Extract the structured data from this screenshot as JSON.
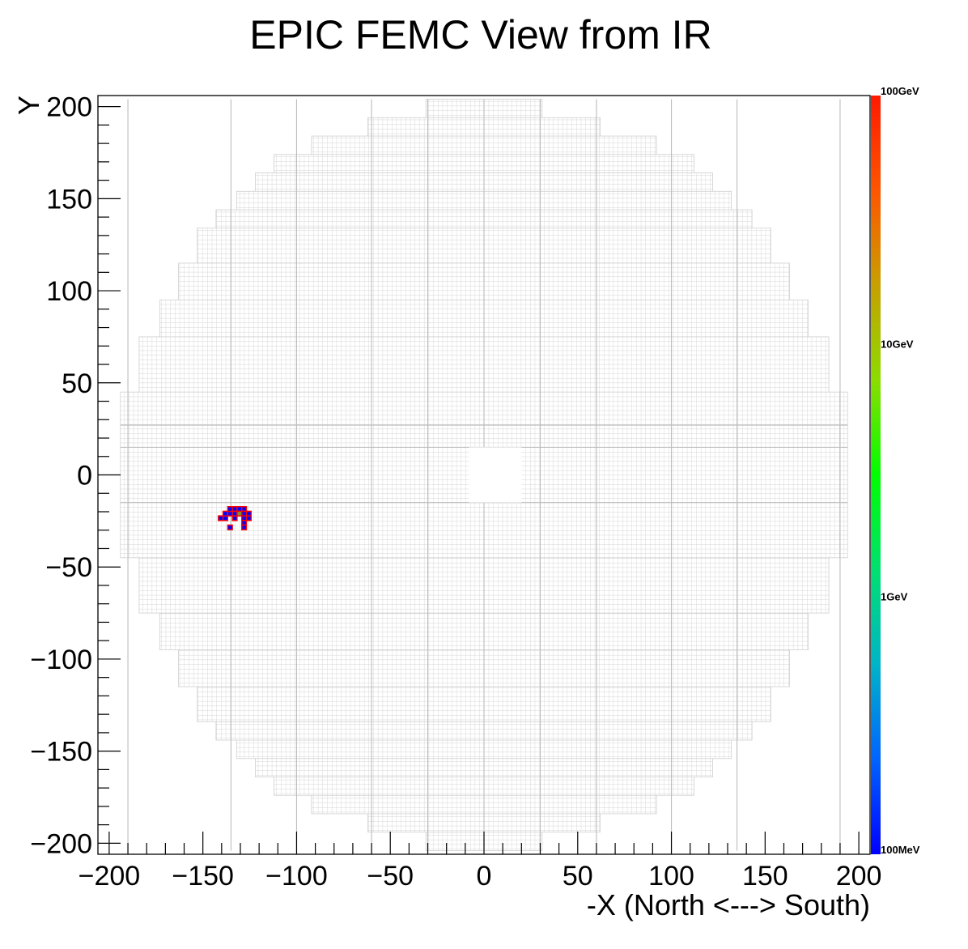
{
  "chart_data": {
    "type": "heatmap",
    "title": "EPIC FEMC View from IR",
    "xlabel": "-X (North <---> South)",
    "ylabel": "Y",
    "xlim": [
      -206,
      206
    ],
    "ylim": [
      -206,
      206
    ],
    "x_ticks": [
      {
        "value": -200,
        "label": "−200"
      },
      {
        "value": -150,
        "label": "−150"
      },
      {
        "value": -100,
        "label": "−100"
      },
      {
        "value": -50,
        "label": "−50"
      },
      {
        "value": 0,
        "label": "0"
      },
      {
        "value": 50,
        "label": "50"
      },
      {
        "value": 100,
        "label": "100"
      },
      {
        "value": 150,
        "label": "150"
      },
      {
        "value": 200,
        "label": "200"
      }
    ],
    "y_ticks": [
      {
        "value": -200,
        "label": "−200"
      },
      {
        "value": -150,
        "label": "−150"
      },
      {
        "value": -100,
        "label": "−100"
      },
      {
        "value": -50,
        "label": "−50"
      },
      {
        "value": 0,
        "label": "0"
      },
      {
        "value": 50,
        "label": "50"
      },
      {
        "value": 100,
        "label": "100"
      },
      {
        "value": 150,
        "label": "150"
      },
      {
        "value": 200,
        "label": "200"
      }
    ],
    "cell_size": 2.5,
    "beam_hole": {
      "x": [
        -8,
        20
      ],
      "y": [
        -15,
        15
      ]
    },
    "detector_outline": [
      {
        "y": [
          -204,
          204
        ],
        "x": [
          -31,
          31
        ]
      },
      {
        "y": [
          -194,
          194
        ],
        "x": [
          -62,
          62
        ]
      },
      {
        "y": [
          -184,
          184
        ],
        "x": [
          -92,
          92
        ]
      },
      {
        "y": [
          -174,
          174
        ],
        "x": [
          -112,
          112
        ]
      },
      {
        "y": [
          -164,
          164
        ],
        "x": [
          -122,
          122
        ]
      },
      {
        "y": [
          -154,
          154
        ],
        "x": [
          -132,
          132
        ]
      },
      {
        "y": [
          -144,
          144
        ],
        "x": [
          -143,
          143
        ]
      },
      {
        "y": [
          -134,
          134
        ],
        "x": [
          -153,
          153
        ]
      },
      {
        "y": [
          -115,
          115
        ],
        "x": [
          -163,
          163
        ]
      },
      {
        "y": [
          -95,
          95
        ],
        "x": [
          -173,
          173
        ]
      },
      {
        "y": [
          -75,
          75
        ],
        "x": [
          -184,
          184
        ]
      },
      {
        "y": [
          -45,
          45
        ],
        "x": [
          -194,
          194
        ]
      }
    ],
    "module_lines_x": [
      -190,
      -135,
      -100,
      -60,
      -30,
      0,
      30,
      60,
      100,
      135,
      190
    ],
    "module_lines_y": [
      -15,
      15,
      27
    ],
    "colorbar": {
      "scale": "log",
      "labels": [
        "100GeV",
        "10GeV",
        "1GeV",
        "100MeV"
      ],
      "colors": [
        "#ff1a00",
        "#ff5500",
        "#c8a000",
        "#8cdc00",
        "#00ff00",
        "#00e070",
        "#00b4c8",
        "#0064ff",
        "#0000ff"
      ]
    },
    "hits": [
      {
        "x": -140.5,
        "y": -23.5,
        "color": "#0000ff"
      },
      {
        "x": -138.0,
        "y": -23.5,
        "color": "#0000ff"
      },
      {
        "x": -138.0,
        "y": -21.0,
        "color": "#0000ff"
      },
      {
        "x": -135.5,
        "y": -21.0,
        "color": "#0000ff"
      },
      {
        "x": -135.5,
        "y": -18.5,
        "color": "#0000ff"
      },
      {
        "x": -133.0,
        "y": -18.5,
        "color": "#0000ff"
      },
      {
        "x": -130.5,
        "y": -18.5,
        "color": "#0000ff"
      },
      {
        "x": -128.0,
        "y": -18.5,
        "color": "#0000ff"
      },
      {
        "x": -133.0,
        "y": -21.0,
        "color": "#0000ff"
      },
      {
        "x": -128.0,
        "y": -21.0,
        "color": "#0000ff"
      },
      {
        "x": -125.5,
        "y": -21.0,
        "color": "#0000ff"
      },
      {
        "x": -130.5,
        "y": -21.0,
        "color": "#8a8a20"
      },
      {
        "x": -133.0,
        "y": -23.5,
        "color": "#0000ff"
      },
      {
        "x": -128.0,
        "y": -23.5,
        "color": "#0000ff"
      },
      {
        "x": -125.5,
        "y": -23.5,
        "color": "#0000ff"
      },
      {
        "x": -128.0,
        "y": -26.0,
        "color": "#0000ff"
      },
      {
        "x": -128.0,
        "y": -28.5,
        "color": "#0000ff"
      },
      {
        "x": -135.5,
        "y": -28.5,
        "color": "#0000ff"
      }
    ]
  }
}
